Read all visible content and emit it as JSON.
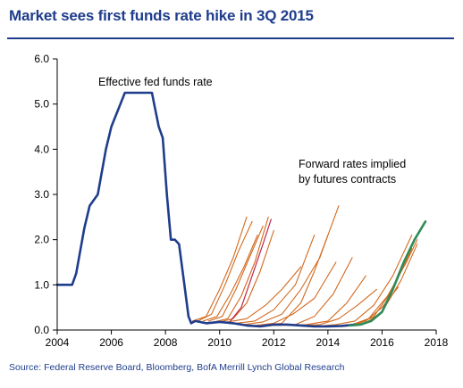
{
  "title": "Market sees first funds rate hike in 3Q 2015",
  "source": "Source: Federal Reserve Board, Bloomberg, BofA Merrill Lynch Global Research",
  "chart_data": {
    "type": "line",
    "title": "Market sees first funds rate hike in 3Q 2015",
    "xlabel": "",
    "ylabel": "",
    "xlim": [
      2004,
      2018
    ],
    "ylim": [
      0.0,
      6.0
    ],
    "x_ticks": [
      "2004",
      "2006",
      "2008",
      "2010",
      "2012",
      "2014",
      "2016",
      "2018"
    ],
    "y_ticks": [
      "0.0",
      "1.0",
      "2.0",
      "3.0",
      "4.0",
      "5.0",
      "6.0"
    ],
    "grid": false,
    "annotations": [
      {
        "text": "Effective fed funds rate"
      },
      {
        "text": "Forward rates implied"
      },
      {
        "text": "by futures contracts"
      }
    ],
    "colors": {
      "effective": "#1f3d8c",
      "forward": "#d2691e",
      "highlight_red": "#c0264a",
      "latest": "#2e8b57",
      "axes": "#000000",
      "title": "#1f3d8c"
    },
    "series": [
      {
        "role": "effective",
        "x": [
          2004.0,
          2004.4,
          2004.55,
          2004.7,
          2005.0,
          2005.2,
          2005.5,
          2005.8,
          2006.0,
          2006.3,
          2006.5,
          2006.55,
          2007.0,
          2007.5,
          2007.6,
          2007.75,
          2007.9,
          2008.05,
          2008.2,
          2008.35,
          2008.5,
          2008.7,
          2008.85,
          2008.95,
          2009.1,
          2009.5,
          2010.0,
          2010.5,
          2011.0,
          2011.5,
          2012.0,
          2012.5,
          2013.0,
          2013.5,
          2014.0,
          2014.5,
          2015.0
        ],
        "values": [
          1.0,
          1.0,
          1.0,
          1.25,
          2.25,
          2.75,
          3.0,
          4.0,
          4.5,
          4.95,
          5.25,
          5.25,
          5.25,
          5.25,
          4.95,
          4.5,
          4.25,
          3.0,
          2.0,
          2.0,
          1.9,
          1.0,
          0.3,
          0.15,
          0.2,
          0.15,
          0.18,
          0.15,
          0.1,
          0.08,
          0.12,
          0.12,
          0.1,
          0.08,
          0.08,
          0.09,
          0.12
        ]
      },
      {
        "role": "forward",
        "x": [
          2009.0,
          2009.5,
          2010.0,
          2010.5,
          2011.0
        ],
        "values": [
          0.2,
          0.3,
          0.9,
          1.6,
          2.5
        ]
      },
      {
        "role": "forward",
        "x": [
          2009.2,
          2009.7,
          2010.2,
          2010.7,
          2011.2
        ],
        "values": [
          0.2,
          0.35,
          1.0,
          1.75,
          2.4
        ]
      },
      {
        "role": "forward",
        "x": [
          2009.4,
          2009.9,
          2010.4,
          2010.9,
          2011.4
        ],
        "values": [
          0.2,
          0.3,
          0.8,
          1.4,
          2.1
        ]
      },
      {
        "role": "forward",
        "x": [
          2009.6,
          2010.1,
          2010.6,
          2011.1,
          2011.6
        ],
        "values": [
          0.2,
          0.3,
          0.9,
          1.6,
          2.3
        ]
      },
      {
        "role": "forward",
        "x": [
          2009.8,
          2010.3,
          2010.8,
          2011.3,
          2011.8
        ],
        "values": [
          0.18,
          0.25,
          0.75,
          1.5,
          2.5
        ]
      },
      {
        "role": "forward",
        "x": [
          2010.0,
          2010.5,
          2011.0,
          2011.5,
          2012.0
        ],
        "values": [
          0.18,
          0.25,
          0.6,
          1.3,
          2.2
        ]
      },
      {
        "role": "forward",
        "x": [
          2010.3,
          2011.0,
          2011.7,
          2012.3,
          2013.0
        ],
        "values": [
          0.18,
          0.25,
          0.55,
          0.9,
          1.4
        ]
      },
      {
        "role": "forward",
        "x": [
          2010.6,
          2011.3,
          2012.0,
          2012.8,
          2013.5
        ],
        "values": [
          0.15,
          0.2,
          0.45,
          1.0,
          2.1
        ]
      },
      {
        "role": "forward",
        "x": [
          2010.9,
          2011.6,
          2012.3,
          2013.0,
          2013.7,
          2014.0
        ],
        "values": [
          0.12,
          0.18,
          0.35,
          0.9,
          1.6,
          2.1
        ]
      },
      {
        "role": "forward",
        "x": [
          2011.3,
          2012.0,
          2012.7,
          2013.5,
          2014.3
        ],
        "values": [
          0.1,
          0.15,
          0.35,
          0.7,
          1.5
        ]
      },
      {
        "role": "forward",
        "x": [
          2011.6,
          2012.3,
          2013.0,
          2013.5,
          2014.0,
          2014.4
        ],
        "values": [
          0.1,
          0.15,
          0.6,
          1.3,
          2.1,
          2.75
        ]
      },
      {
        "role": "forward",
        "x": [
          2012.0,
          2012.8,
          2013.5,
          2014.2,
          2014.9
        ],
        "values": [
          0.1,
          0.12,
          0.3,
          0.8,
          1.6
        ]
      },
      {
        "role": "forward",
        "x": [
          2012.5,
          2013.2,
          2014.0,
          2014.7,
          2015.4
        ],
        "values": [
          0.1,
          0.12,
          0.2,
          0.6,
          1.2
        ]
      },
      {
        "role": "forward",
        "x": [
          2013.0,
          2013.7,
          2014.4,
          2015.1,
          2015.8
        ],
        "values": [
          0.1,
          0.12,
          0.25,
          0.55,
          0.9
        ]
      },
      {
        "role": "forward",
        "x": [
          2013.5,
          2014.3,
          2015.0,
          2015.7,
          2016.4,
          2017.1
        ],
        "values": [
          0.08,
          0.12,
          0.2,
          0.55,
          1.2,
          2.1
        ]
      },
      {
        "role": "forward",
        "x": [
          2014.0,
          2014.8,
          2015.5,
          2016.2,
          2016.9,
          2017.3
        ],
        "values": [
          0.08,
          0.1,
          0.25,
          0.75,
          1.5,
          2.0
        ]
      },
      {
        "role": "forward",
        "x": [
          2014.3,
          2015.0,
          2015.7,
          2016.4,
          2017.1
        ],
        "values": [
          0.08,
          0.1,
          0.3,
          0.9,
          1.8
        ]
      },
      {
        "role": "forward",
        "x": [
          2014.6,
          2015.3,
          2016.0,
          2016.7,
          2017.3
        ],
        "values": [
          0.08,
          0.12,
          0.4,
          1.1,
          1.9
        ]
      },
      {
        "role": "forward",
        "x": [
          2014.8,
          2015.4,
          2016.0,
          2016.6
        ],
        "values": [
          0.1,
          0.2,
          0.5,
          0.95
        ]
      },
      {
        "role": "highlight_red",
        "x": [
          2010.4,
          2010.8,
          2011.2,
          2011.6,
          2011.9
        ],
        "values": [
          0.2,
          0.5,
          1.2,
          1.9,
          2.45
        ]
      },
      {
        "role": "latest",
        "x": [
          2014.8,
          2015.2,
          2015.6,
          2016.0,
          2016.4,
          2016.8,
          2017.2,
          2017.6
        ],
        "values": [
          0.1,
          0.12,
          0.2,
          0.4,
          0.9,
          1.5,
          2.0,
          2.4
        ]
      }
    ]
  }
}
